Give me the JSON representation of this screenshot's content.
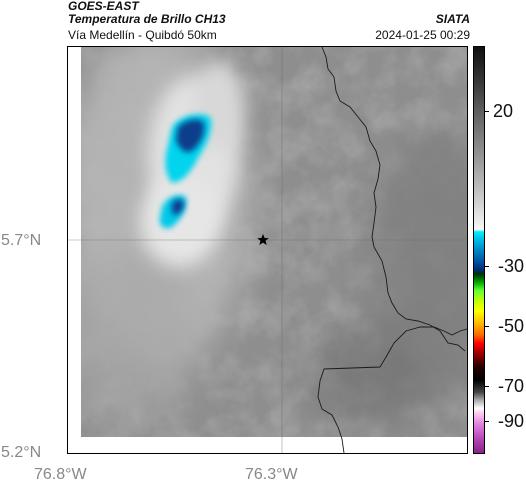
{
  "header": {
    "platform": "GOES-EAST",
    "product": "Temperatura de Brillo CH13",
    "region": "Vía Medellín - Quibdó 50km",
    "organization": "SIATA",
    "timestamp": "2024-01-25 00:29"
  },
  "axes": {
    "lat_labels": [
      "5.7°N",
      "5.2°N"
    ],
    "lon_labels": [
      "76.8°W",
      "76.3°W"
    ]
  },
  "colorbar": {
    "tick_labels": [
      "20",
      "-30",
      "-50",
      "-70",
      "-90"
    ]
  },
  "map": {
    "marker_icon": "star-icon",
    "land_color": "#8e8e8e",
    "cloud_color": "#e6e6e6",
    "cold_top_color": "#0a3c8c",
    "border_color": "#1a1a1a"
  }
}
